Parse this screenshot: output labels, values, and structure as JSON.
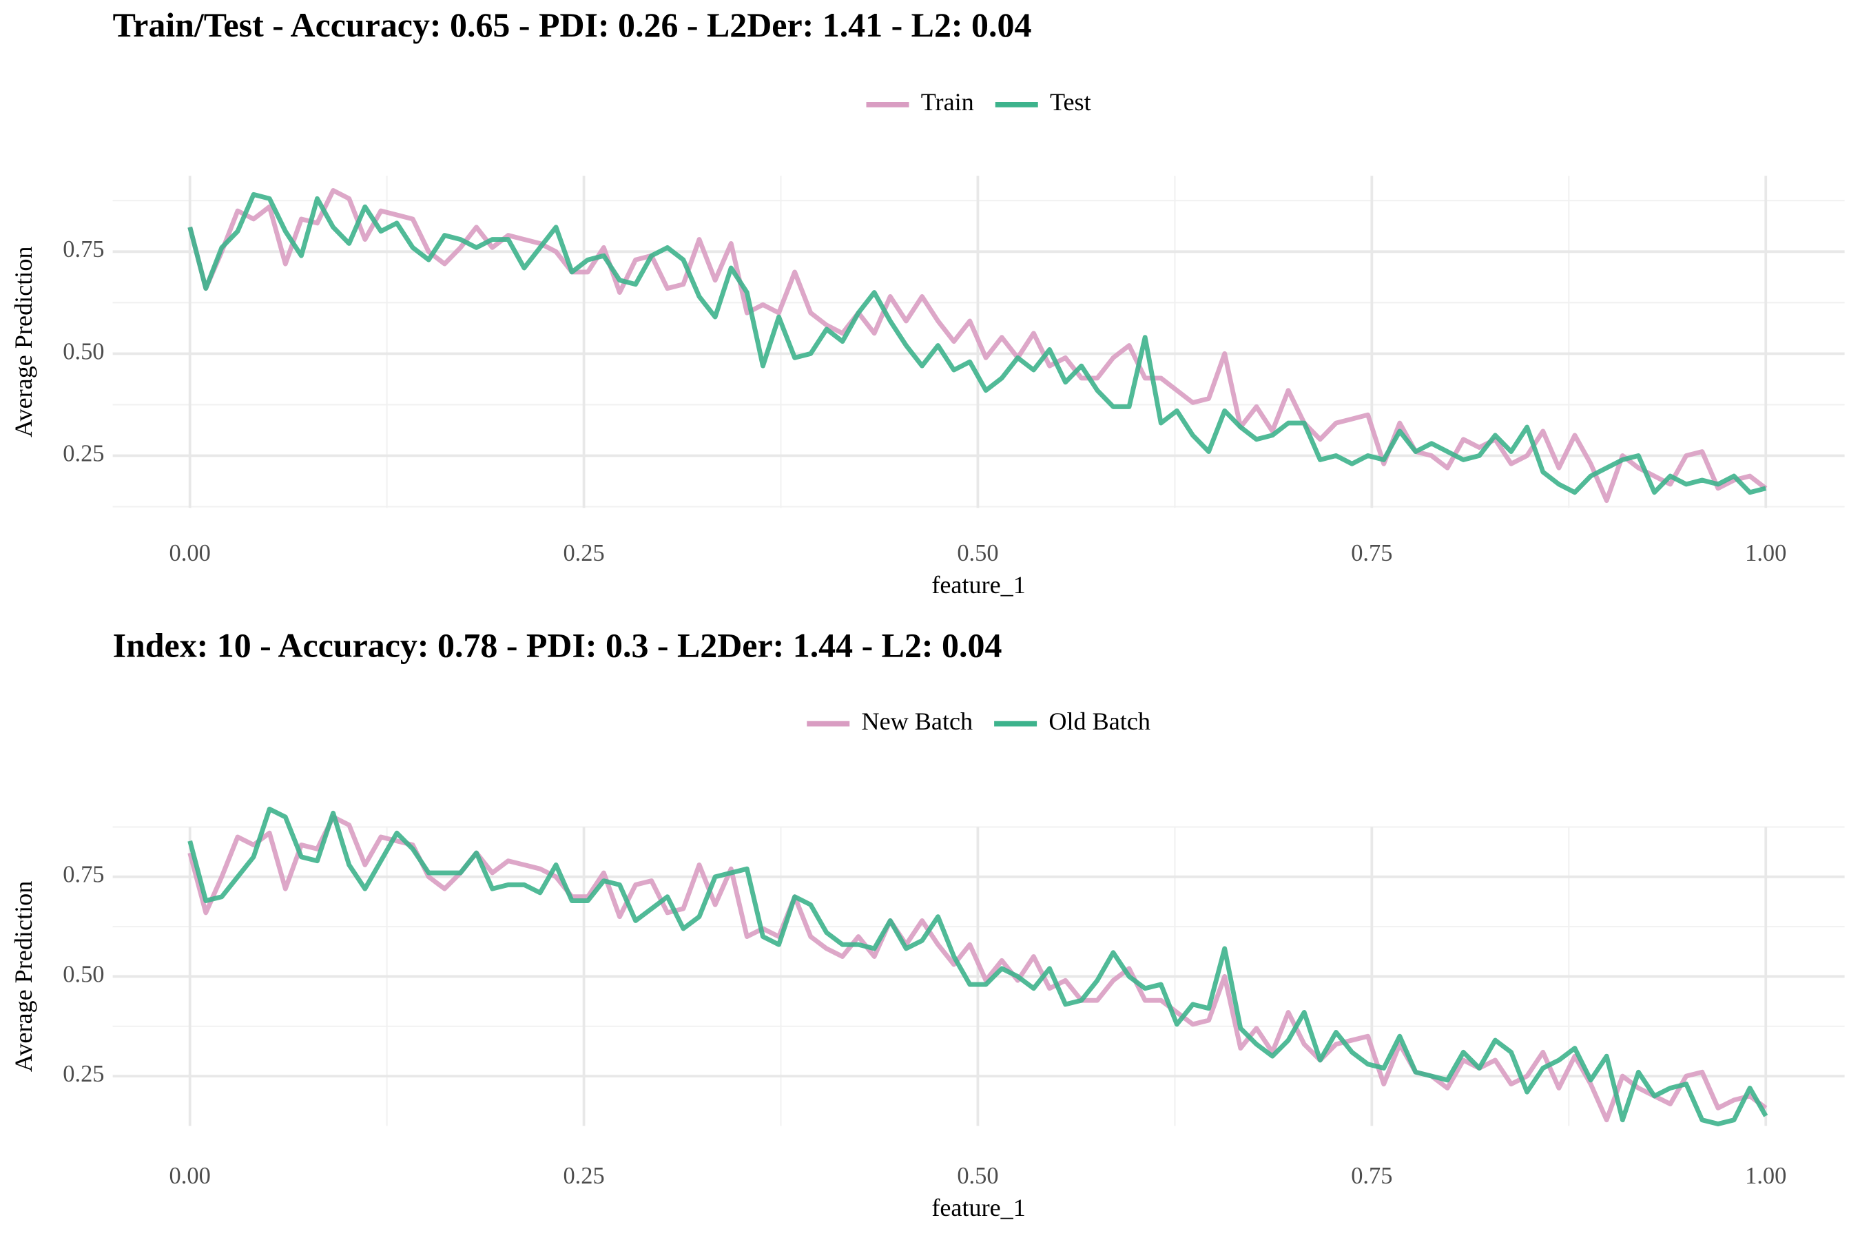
{
  "chart_data": [
    {
      "type": "line",
      "title": "Train/Test - Accuracy: 0.65 - PDI: 0.26 - L2Der: 1.41 - L2: 0.04",
      "x_label": "feature_1",
      "y_label": "Average Prediction",
      "legend": "top",
      "grid": true,
      "xlim": [
        -0.049,
        1.05
      ],
      "ylim": [
        0.122,
        0.936
      ],
      "xticks": [
        {
          "value": 0,
          "label": "0.00"
        },
        0.25,
        {
          "value": 0.5,
          "label": "0.50"
        },
        0.75,
        {
          "value": 1,
          "label": "1.00"
        }
      ],
      "yticks": [
        0.25,
        {
          "value": 0.5,
          "label": "0.50"
        },
        0.75
      ],
      "x_minor_ticks": [
        0.125,
        0.375,
        0.625,
        0.875
      ],
      "y_minor_ticks": [
        0.125,
        0.375,
        0.625,
        0.875
      ],
      "x": [
        0,
        0.0101,
        0.0202,
        0.0303,
        0.0404,
        0.0505,
        0.0606,
        0.0707,
        0.0808,
        0.0909,
        0.101,
        0.1111,
        0.1212,
        0.1313,
        0.1414,
        0.1515,
        0.1616,
        0.1717,
        0.1818,
        0.1919,
        0.202,
        0.2121,
        0.2222,
        0.2323,
        0.2424,
        0.2525,
        0.2626,
        0.2727,
        0.2828,
        0.2929,
        0.303,
        0.3131,
        0.3232,
        0.3333,
        0.3434,
        0.3535,
        0.3636,
        0.3737,
        0.3838,
        0.3939,
        0.404,
        0.4141,
        0.4242,
        0.4343,
        0.4444,
        0.4545,
        0.4646,
        0.4747,
        0.4848,
        0.4949,
        0.5051,
        0.5152,
        0.5253,
        0.5354,
        0.5455,
        0.5556,
        0.5657,
        0.5758,
        0.5859,
        0.596,
        0.6061,
        0.6162,
        0.6263,
        0.6364,
        0.6465,
        0.6566,
        0.6667,
        0.6768,
        0.6869,
        0.697,
        0.7071,
        0.7172,
        0.7273,
        0.7374,
        0.7475,
        0.7576,
        0.7677,
        0.7778,
        0.7879,
        0.798,
        0.8081,
        0.8182,
        0.8283,
        0.8384,
        0.8485,
        0.8586,
        0.8687,
        0.8788,
        0.8889,
        0.899,
        0.9091,
        0.9192,
        0.9293,
        0.9394,
        0.9495,
        0.9596,
        0.9697,
        0.9798,
        0.9899,
        1
      ],
      "series": [
        {
          "name": "Train",
          "color": "#d99dc2",
          "values": [
            0.81,
            0.66,
            0.75,
            0.85,
            0.83,
            0.86,
            0.72,
            0.83,
            0.82,
            0.9,
            0.88,
            0.78,
            0.85,
            0.84,
            0.83,
            0.75,
            0.72,
            0.76,
            0.81,
            0.76,
            0.79,
            0.78,
            0.77,
            0.75,
            0.7,
            0.7,
            0.76,
            0.65,
            0.73,
            0.74,
            0.66,
            0.67,
            0.78,
            0.68,
            0.77,
            0.6,
            0.62,
            0.6,
            0.7,
            0.6,
            0.57,
            0.55,
            0.6,
            0.55,
            0.64,
            0.58,
            0.64,
            0.58,
            0.53,
            0.58,
            0.49,
            0.54,
            0.49,
            0.55,
            0.47,
            0.49,
            0.44,
            0.44,
            0.49,
            0.52,
            0.44,
            0.44,
            0.41,
            0.38,
            0.39,
            0.5,
            0.32,
            0.37,
            0.31,
            0.41,
            0.33,
            0.29,
            0.33,
            0.34,
            0.35,
            0.23,
            0.33,
            0.26,
            0.25,
            0.22,
            0.29,
            0.27,
            0.29,
            0.23,
            0.25,
            0.31,
            0.22,
            0.3,
            0.23,
            0.14,
            0.25,
            0.22,
            0.2,
            0.18,
            0.25,
            0.26,
            0.17,
            0.19,
            0.2,
            0.17
          ]
        },
        {
          "name": "Test",
          "color": "#3db38c",
          "values": [
            0.81,
            0.66,
            0.76,
            0.8,
            0.89,
            0.88,
            0.8,
            0.74,
            0.88,
            0.81,
            0.77,
            0.86,
            0.8,
            0.82,
            0.76,
            0.73,
            0.79,
            0.78,
            0.76,
            0.78,
            0.78,
            0.71,
            0.76,
            0.81,
            0.7,
            0.73,
            0.74,
            0.68,
            0.67,
            0.74,
            0.76,
            0.73,
            0.64,
            0.59,
            0.71,
            0.65,
            0.47,
            0.59,
            0.49,
            0.5,
            0.56,
            0.53,
            0.6,
            0.65,
            0.58,
            0.52,
            0.47,
            0.52,
            0.46,
            0.48,
            0.41,
            0.44,
            0.49,
            0.46,
            0.51,
            0.43,
            0.47,
            0.41,
            0.37,
            0.37,
            0.54,
            0.33,
            0.36,
            0.3,
            0.26,
            0.36,
            0.32,
            0.29,
            0.3,
            0.33,
            0.33,
            0.24,
            0.25,
            0.23,
            0.25,
            0.24,
            0.31,
            0.26,
            0.28,
            0.26,
            0.24,
            0.25,
            0.3,
            0.26,
            0.32,
            0.21,
            0.18,
            0.16,
            0.2,
            0.22,
            0.24,
            0.25,
            0.16,
            0.2,
            0.18,
            0.19,
            0.18,
            0.2,
            0.16,
            0.17
          ]
        }
      ]
    },
    {
      "type": "line",
      "title": "Index: 10 - Accuracy: 0.78 - PDI: 0.3 - L2Der: 1.44 - L2: 0.04",
      "x_label": "feature_1",
      "y_label": "Average Prediction",
      "legend": "top",
      "grid": true,
      "xlim": [
        -0.049,
        1.05
      ],
      "ylim": [
        0.125,
        0.875
      ],
      "xticks": [
        {
          "value": 0,
          "label": "0.00"
        },
        0.25,
        {
          "value": 0.5,
          "label": "0.50"
        },
        0.75,
        {
          "value": 1,
          "label": "1.00"
        }
      ],
      "yticks": [
        0.25,
        {
          "value": 0.5,
          "label": "0.50"
        },
        0.75
      ],
      "x_minor_ticks": [
        0.125,
        0.375,
        0.625,
        0.875
      ],
      "y_minor_ticks": [
        0.375,
        0.625,
        0.875
      ],
      "x": [
        0,
        0.0101,
        0.0202,
        0.0303,
        0.0404,
        0.0505,
        0.0606,
        0.0707,
        0.0808,
        0.0909,
        0.101,
        0.1111,
        0.1212,
        0.1313,
        0.1414,
        0.1515,
        0.1616,
        0.1717,
        0.1818,
        0.1919,
        0.202,
        0.2121,
        0.2222,
        0.2323,
        0.2424,
        0.2525,
        0.2626,
        0.2727,
        0.2828,
        0.2929,
        0.303,
        0.3131,
        0.3232,
        0.3333,
        0.3434,
        0.3535,
        0.3636,
        0.3737,
        0.3838,
        0.3939,
        0.404,
        0.4141,
        0.4242,
        0.4343,
        0.4444,
        0.4545,
        0.4646,
        0.4747,
        0.4848,
        0.4949,
        0.5051,
        0.5152,
        0.5253,
        0.5354,
        0.5455,
        0.5556,
        0.5657,
        0.5758,
        0.5859,
        0.596,
        0.6061,
        0.6162,
        0.6263,
        0.6364,
        0.6465,
        0.6566,
        0.6667,
        0.6768,
        0.6869,
        0.697,
        0.7071,
        0.7172,
        0.7273,
        0.7374,
        0.7475,
        0.7576,
        0.7677,
        0.7778,
        0.7879,
        0.798,
        0.8081,
        0.8182,
        0.8283,
        0.8384,
        0.8485,
        0.8586,
        0.8687,
        0.8788,
        0.8889,
        0.899,
        0.9091,
        0.9192,
        0.9293,
        0.9394,
        0.9495,
        0.9596,
        0.9697,
        0.9798,
        0.9899,
        1
      ],
      "series": [
        {
          "name": "New Batch",
          "color": "#d99dc2",
          "values": [
            0.81,
            0.66,
            0.75,
            0.85,
            0.83,
            0.86,
            0.72,
            0.83,
            0.82,
            0.9,
            0.88,
            0.78,
            0.85,
            0.84,
            0.83,
            0.75,
            0.72,
            0.76,
            0.81,
            0.76,
            0.79,
            0.78,
            0.77,
            0.75,
            0.7,
            0.7,
            0.76,
            0.65,
            0.73,
            0.74,
            0.66,
            0.67,
            0.78,
            0.68,
            0.77,
            0.6,
            0.62,
            0.6,
            0.7,
            0.6,
            0.57,
            0.55,
            0.6,
            0.55,
            0.64,
            0.58,
            0.64,
            0.58,
            0.53,
            0.58,
            0.49,
            0.54,
            0.49,
            0.55,
            0.47,
            0.49,
            0.44,
            0.44,
            0.49,
            0.52,
            0.44,
            0.44,
            0.41,
            0.38,
            0.39,
            0.5,
            0.32,
            0.37,
            0.31,
            0.41,
            0.33,
            0.29,
            0.33,
            0.34,
            0.35,
            0.23,
            0.33,
            0.26,
            0.25,
            0.22,
            0.29,
            0.27,
            0.29,
            0.23,
            0.25,
            0.31,
            0.22,
            0.3,
            0.23,
            0.14,
            0.25,
            0.22,
            0.2,
            0.18,
            0.25,
            0.26,
            0.17,
            0.19,
            0.2,
            0.17
          ]
        },
        {
          "name": "Old Batch",
          "color": "#3db38c",
          "values": [
            0.84,
            0.69,
            0.7,
            0.75,
            0.8,
            0.92,
            0.9,
            0.8,
            0.79,
            0.91,
            0.78,
            0.72,
            0.79,
            0.86,
            0.82,
            0.76,
            0.76,
            0.76,
            0.81,
            0.72,
            0.73,
            0.73,
            0.71,
            0.78,
            0.69,
            0.69,
            0.74,
            0.73,
            0.64,
            0.67,
            0.7,
            0.62,
            0.65,
            0.75,
            0.76,
            0.77,
            0.6,
            0.58,
            0.7,
            0.68,
            0.61,
            0.58,
            0.58,
            0.57,
            0.64,
            0.57,
            0.59,
            0.65,
            0.55,
            0.48,
            0.48,
            0.52,
            0.5,
            0.47,
            0.52,
            0.43,
            0.44,
            0.49,
            0.56,
            0.5,
            0.47,
            0.48,
            0.38,
            0.43,
            0.42,
            0.57,
            0.37,
            0.33,
            0.3,
            0.34,
            0.41,
            0.29,
            0.36,
            0.31,
            0.28,
            0.27,
            0.35,
            0.26,
            0.25,
            0.24,
            0.31,
            0.27,
            0.34,
            0.31,
            0.21,
            0.27,
            0.29,
            0.32,
            0.24,
            0.3,
            0.14,
            0.26,
            0.2,
            0.22,
            0.23,
            0.14,
            0.13,
            0.14,
            0.22,
            0.15
          ]
        }
      ]
    }
  ]
}
